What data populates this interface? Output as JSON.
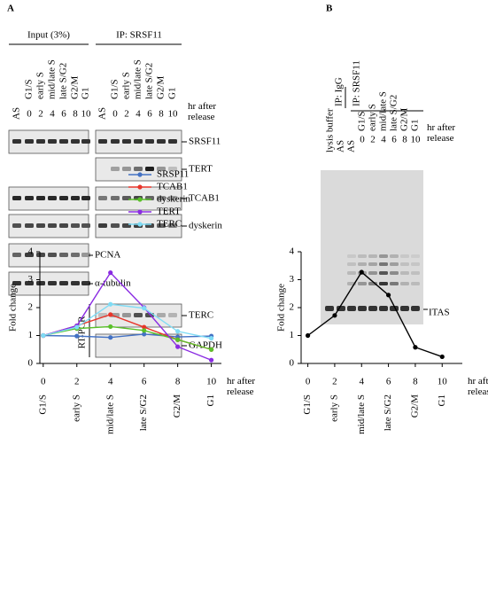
{
  "figure": {
    "panel_a": {
      "label": "A",
      "input_header": "Input (3%)",
      "ip_header": "IP: SRSF11",
      "phases": [
        "G1/S",
        "early S",
        "mid/late S",
        "late S/G2",
        "G2/M",
        "G1"
      ],
      "as_label": "AS",
      "hours": [
        0,
        2,
        4,
        6,
        8,
        10
      ],
      "hours_label": "hr after release",
      "blots": [
        "SRSF11",
        "TERT",
        "TCAB1",
        "dyskerin",
        "PCNA",
        "α-tubulin",
        "TERC",
        "GAPDH"
      ],
      "rt_pcr": "RT-PCR"
    },
    "panel_b": {
      "label": "B",
      "ip_igg": "IP: IgG",
      "ip_srsf11": "IP: SRSF11",
      "lanes": [
        "lysis buffer",
        "AS",
        "AS"
      ],
      "band_label": "ITAS"
    }
  },
  "chart_data": [
    {
      "type": "line",
      "x": [
        0,
        2,
        4,
        6,
        8,
        10
      ],
      "phases": [
        "G1/S",
        "early S",
        "mid/late S",
        "late S/G2",
        "G2/M",
        "G1"
      ],
      "xlim": [
        -0.2,
        10.6
      ],
      "xticks": [
        0,
        2,
        4,
        6,
        8,
        10
      ],
      "ylim": [
        0,
        4
      ],
      "yticks": [
        0,
        1,
        2,
        3,
        4
      ],
      "xlabel": "hr after release",
      "ylabel": "Fold change",
      "legend": "upper right",
      "series": [
        {
          "name": "SRSP11",
          "color": "#4472c4",
          "values": [
            1,
            0.98,
            0.93,
            1.05,
            0.95,
            0.98
          ]
        },
        {
          "name": "TCAB1",
          "color": "#e8352a",
          "values": [
            1,
            1.35,
            1.75,
            1.3,
            0.85,
            0.5
          ]
        },
        {
          "name": "dyskerin",
          "color": "#5ac02a",
          "values": [
            1,
            1.25,
            1.32,
            1.18,
            0.85,
            0.5
          ]
        },
        {
          "name": "TERT",
          "color": "#8a2be2",
          "values": [
            1,
            1.35,
            3.25,
            2.0,
            0.6,
            0.12
          ]
        },
        {
          "name": "TERC",
          "color": "#7fdcf5",
          "values": [
            1,
            1.3,
            2.12,
            1.98,
            1.15,
            0.9
          ]
        }
      ]
    },
    {
      "type": "line",
      "x": [
        0,
        2,
        4,
        6,
        8,
        10
      ],
      "phases": [
        "G1/S",
        "early S",
        "mid/late S",
        "late S/G2",
        "G2/M",
        "G1"
      ],
      "xlim": [
        -0.5,
        11.5
      ],
      "xticks": [
        0,
        2,
        4,
        6,
        8,
        10
      ],
      "ylim": [
        0,
        4
      ],
      "yticks": [
        0,
        1,
        2,
        3,
        4
      ],
      "xlabel": "hr after release",
      "ylabel": "Fold change",
      "series": [
        {
          "color": "#000000",
          "values": [
            1,
            1.72,
            3.27,
            2.45,
            0.58,
            0.24
          ]
        }
      ]
    }
  ]
}
